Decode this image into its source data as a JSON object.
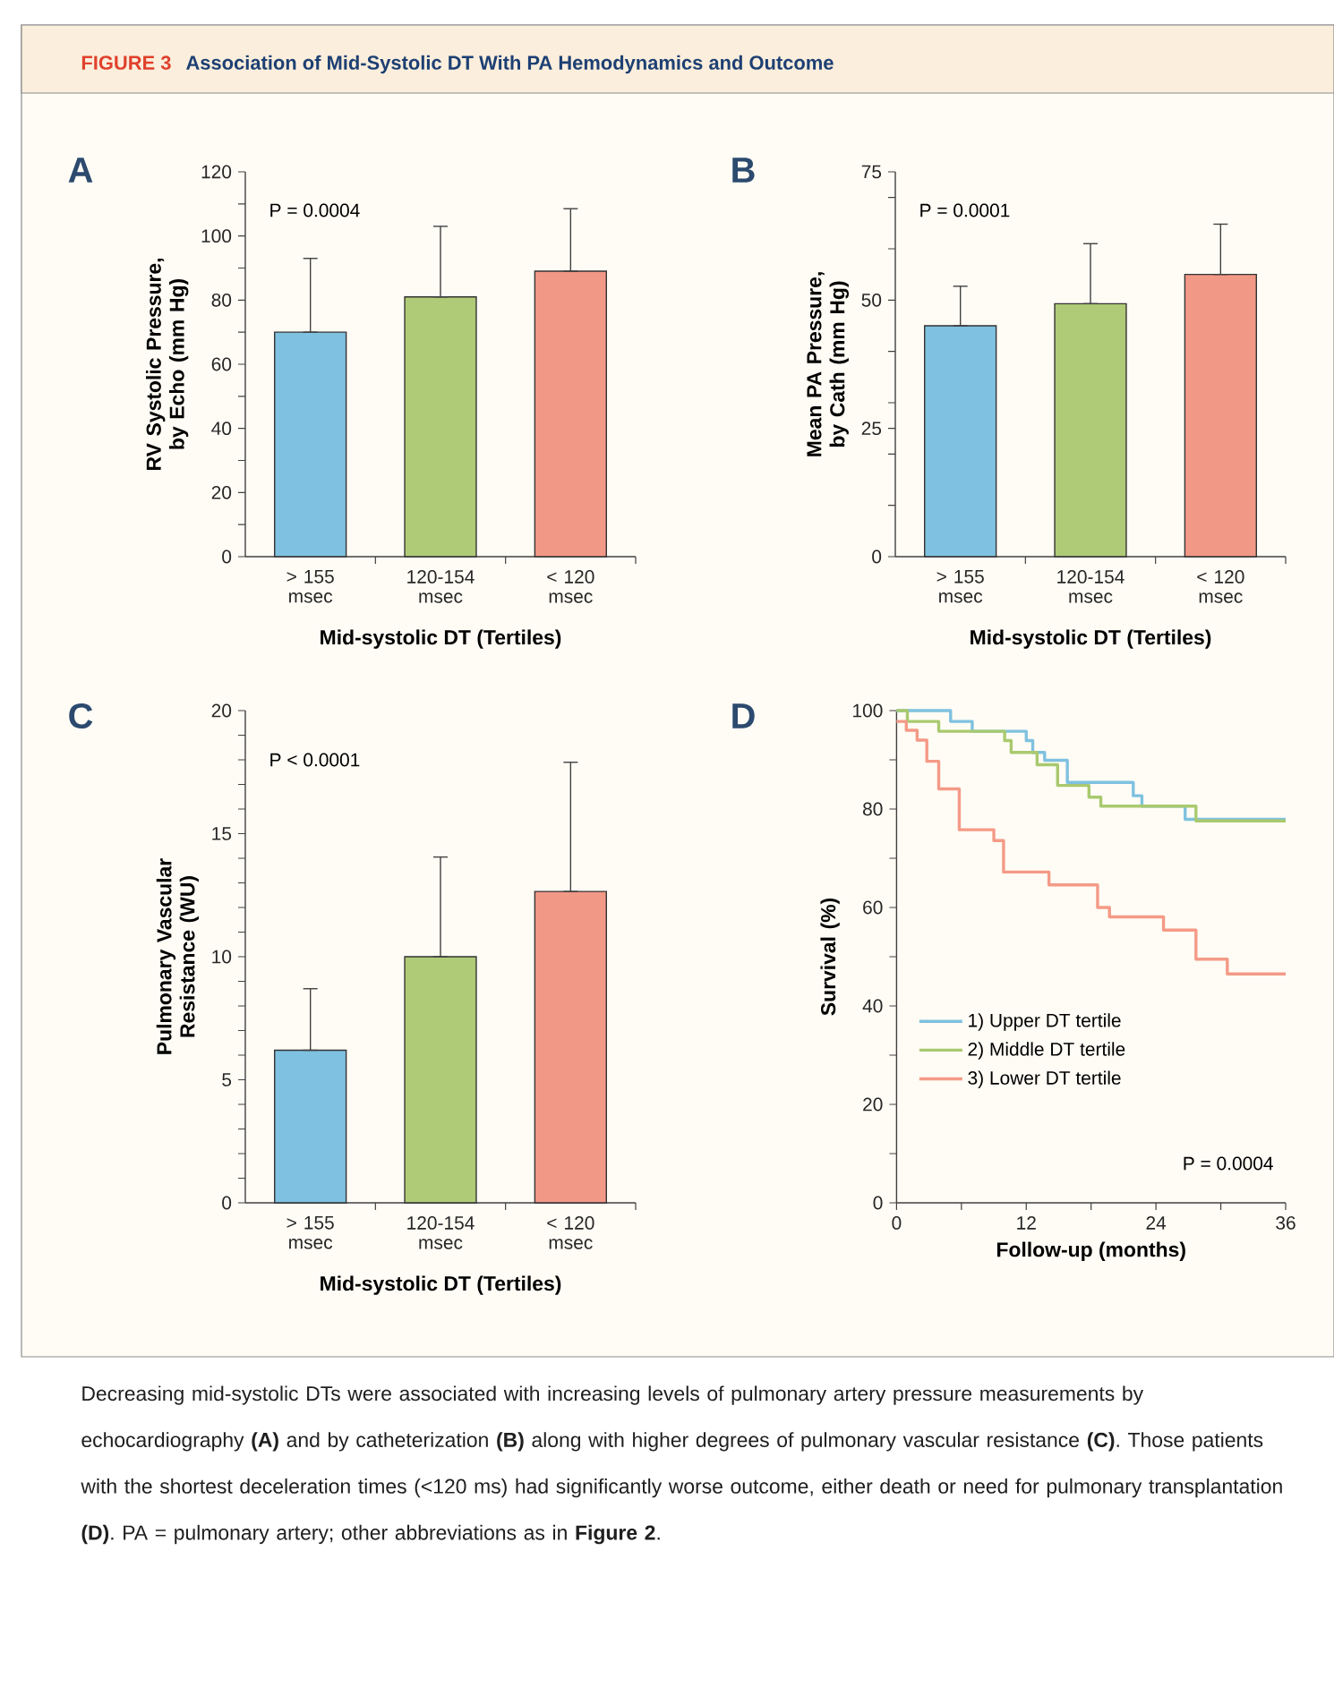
{
  "chart_data": [
    {
      "type": "bar",
      "title": "A",
      "ylabel": "RV Systolic Pressure, by Echo (mm Hg)",
      "xlabel": "Mid-systolic DT (Tertiles)",
      "annotations": [
        "P = 0.0004",
        "FIGURE 3",
        "Association of Mid-Systolic DT With PA Hemodynamics and Outcome"
      ],
      "categories": [
        "> 155 msec",
        "120-154 msec",
        "< 120 msec"
      ],
      "values": [
        70,
        81,
        89
      ],
      "errors": [
        [
          70,
          93
        ],
        [
          81,
          103
        ],
        [
          89,
          108.5
        ]
      ],
      "colors": [
        "#7fc1e0",
        "#afcb77",
        "#f29886"
      ],
      "ylim": [
        0,
        120
      ],
      "yticks": [
        0,
        {
          "value": 10,
          "label": null
        },
        20,
        {
          "value": 30,
          "label": null
        },
        40,
        {
          "value": 50,
          "label": null
        },
        60,
        {
          "value": 70,
          "label": null
        },
        80,
        {
          "value": 90,
          "label": null
        },
        100,
        {
          "value": 110,
          "label": null
        },
        120
      ]
    },
    {
      "type": "bar",
      "title": "B",
      "ylabel": "Mean PA Pressure, by Cath (mm Hg)",
      "xlabel": "Mid-systolic DT (Tertiles)",
      "annotations": [
        "P = 0.0001"
      ],
      "categories": [
        "> 155 msec",
        "120-154 msec",
        "< 120 msec"
      ],
      "values": [
        45,
        49.3,
        55
      ],
      "errors": [
        [
          45,
          52.7
        ],
        [
          49.3,
          61
        ],
        [
          55,
          64.8
        ]
      ],
      "colors": [
        "#7fc1e0",
        "#afcb77",
        "#f29886"
      ],
      "ylim": [
        0,
        75
      ],
      "yticks": [
        0,
        {
          "value": 10,
          "label": null
        },
        {
          "value": 20,
          "label": null
        },
        25,
        {
          "value": 30,
          "label": null
        },
        {
          "value": 40,
          "label": null
        },
        50,
        {
          "value": 60,
          "label": null
        },
        {
          "value": 70,
          "label": null
        },
        75
      ]
    },
    {
      "type": "bar",
      "title": "C",
      "ylabel": "Pulmonary Vascular Resistance (WU)",
      "xlabel": "Mid-systolic DT (Tertiles)",
      "annotations": [
        "P < 0.0001"
      ],
      "categories": [
        "> 155 msec",
        "120-154 msec",
        "< 120 msec"
      ],
      "values": [
        6.2,
        10,
        12.65
      ],
      "errors": [
        [
          6.2,
          8.7
        ],
        [
          10,
          14.05
        ],
        [
          12.65,
          17.9
        ]
      ],
      "colors": [
        "#7fc1e0",
        "#afcb77",
        "#f29886"
      ],
      "ylim": [
        0,
        20
      ],
      "yticks": [
        0,
        {
          "value": 1,
          "label": null
        },
        {
          "value": 2,
          "label": null
        },
        {
          "value": 3,
          "label": null
        },
        {
          "value": 4,
          "label": null
        },
        5,
        {
          "value": 6,
          "label": null
        },
        {
          "value": 7,
          "label": null
        },
        {
          "value": 8,
          "label": null
        },
        {
          "value": 9,
          "label": null
        },
        10,
        {
          "value": 11,
          "label": null
        },
        {
          "value": 12,
          "label": null
        },
        {
          "value": 13,
          "label": null
        },
        {
          "value": 14,
          "label": null
        },
        15,
        {
          "value": 16,
          "label": null
        },
        {
          "value": 17,
          "label": null
        },
        {
          "value": 18,
          "label": null
        },
        {
          "value": 19,
          "label": null
        },
        20
      ]
    },
    {
      "type": "step",
      "title": "D",
      "ylabel": "Survival (%)",
      "xlabel": "Follow-up (months)",
      "annotations": [
        "P = 0.0004",
        "Decreasing mid-systolic DTs were associated with increasing levels of pulmonary artery pressure measurements by echocardiography **(A)** and by catheterization **(B)** along with higher degrees of pulmonary vascular resistance **(C)**. Those patients with the shortest deceleration times (<120 ms) had significantly worse outcome, either death or need for pulmonary transplantation **(D)**. PA = pulmonary artery; other abbreviations as in **Figure 2**."
      ],
      "legend": "bottom left",
      "series": [
        {
          "name": "1) Upper DT tertile",
          "color": "#7fc1e0",
          "x": [
            0,
            5,
            7,
            12,
            12.6,
            13.7,
            15.8,
            21.9,
            22.7,
            26.7,
            36
          ],
          "values": [
            100,
            97.8,
            95.8,
            93.9,
            91.5,
            89.9,
            85.4,
            82.7,
            80.6,
            77.9,
            77.9
          ]
        },
        {
          "name": "2) Middle DT tertile",
          "color": "#a9c96f",
          "x": [
            0,
            1,
            3.9,
            10,
            10.6,
            13,
            14.9,
            17.8,
            18.9,
            27.7,
            36
          ],
          "values": [
            100,
            97.8,
            95.8,
            93.9,
            91.5,
            89,
            84.8,
            82.4,
            80.6,
            77.6,
            77.6
          ]
        },
        {
          "name": "3) Lower DT tertile",
          "color": "#f49a87",
          "x": [
            0,
            0.9,
            1.9,
            2.8,
            3.9,
            5.8,
            9,
            9.9,
            14.1,
            18.6,
            19.7,
            24.7,
            27.7,
            30.6,
            36
          ],
          "values": [
            97.8,
            96,
            94,
            89.7,
            84.1,
            75.8,
            73.6,
            67.2,
            64.6,
            60,
            58.1,
            55.4,
            49.5,
            46.5,
            46.5
          ]
        }
      ],
      "xlim": [
        0,
        36
      ],
      "xticks": [
        0,
        {
          "value": 6,
          "label": null
        },
        12,
        {
          "value": 18,
          "label": null
        },
        24,
        {
          "value": 30,
          "label": null
        },
        36
      ],
      "ylim": [
        0,
        100
      ],
      "yticks": [
        0,
        {
          "value": 10,
          "label": null
        },
        20,
        {
          "value": 30,
          "label": null
        },
        40,
        {
          "value": 50,
          "label": null
        },
        60,
        {
          "value": 70,
          "label": null
        },
        80,
        {
          "value": 90,
          "label": null
        },
        100
      ]
    }
  ]
}
